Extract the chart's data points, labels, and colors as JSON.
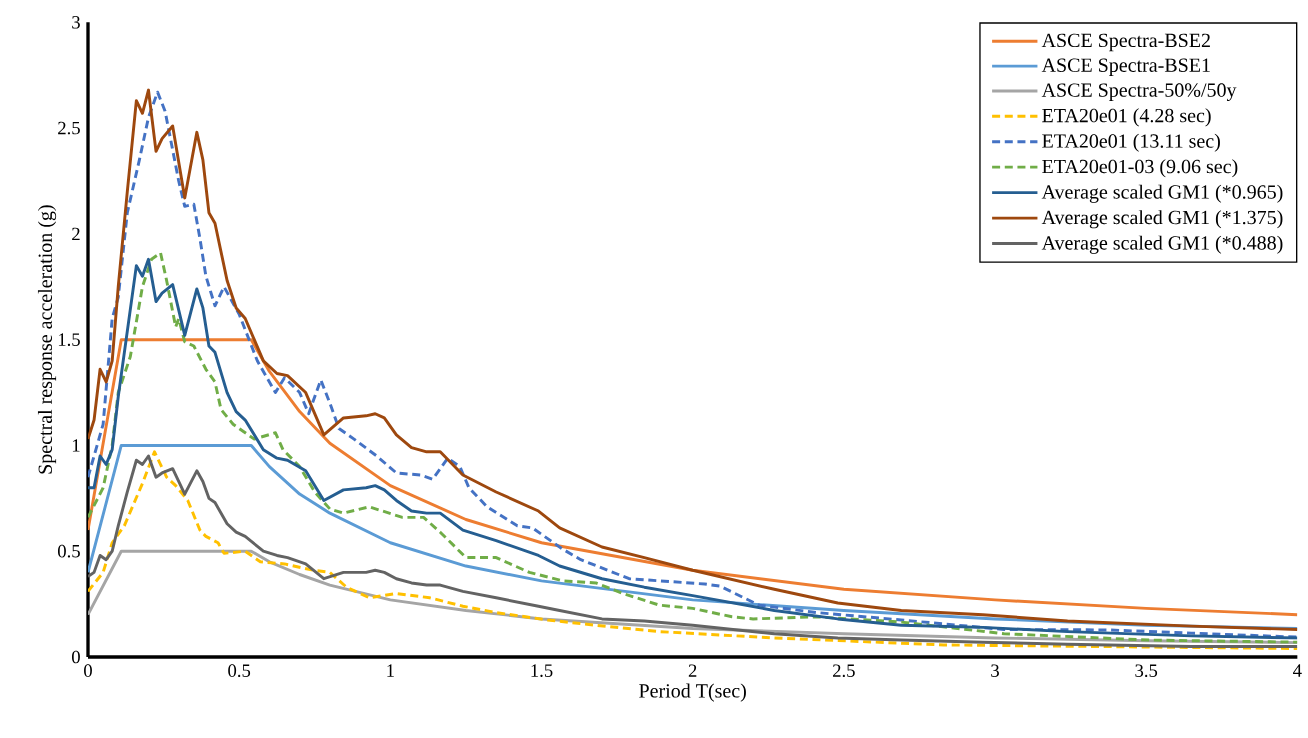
{
  "chart_data": {
    "type": "line",
    "xlabel": "Period T(sec)",
    "ylabel": "Spectral response acceleration (g)",
    "xlim": [
      0,
      4
    ],
    "ylim": [
      0,
      3
    ],
    "xticks": [
      0,
      0.5,
      1,
      1.5,
      2,
      2.5,
      3,
      3.5,
      4
    ],
    "yticks": [
      0,
      0.5,
      1,
      1.5,
      2,
      2.5,
      3
    ],
    "grid": false,
    "legend": "top right",
    "series": [
      {
        "name": "ASCE Spectra-BSE2",
        "color": "#ed7d31",
        "line_style": "solid",
        "x": [
          0,
          0.11,
          0.54,
          0.6,
          0.7,
          0.8,
          1,
          1.25,
          1.5,
          2,
          2.5,
          3,
          3.5,
          4
        ],
        "values": [
          0.6,
          1.5,
          1.5,
          1.35,
          1.16,
          1.01,
          0.81,
          0.65,
          0.54,
          0.41,
          0.32,
          0.27,
          0.23,
          0.2
        ]
      },
      {
        "name": "ASCE Spectra-BSE1",
        "color": "#5b9bd5",
        "line_style": "solid",
        "x": [
          0,
          0.11,
          0.54,
          0.6,
          0.7,
          0.8,
          1,
          1.25,
          1.5,
          2,
          2.5,
          3,
          3.5,
          4
        ],
        "values": [
          0.4,
          1.0,
          1.0,
          0.9,
          0.77,
          0.68,
          0.54,
          0.43,
          0.36,
          0.27,
          0.22,
          0.18,
          0.15,
          0.135
        ]
      },
      {
        "name": "ASCE Spectra-50%/50y",
        "color": "#a5a5a5",
        "line_style": "solid",
        "x": [
          0,
          0.11,
          0.54,
          0.6,
          0.7,
          0.8,
          1,
          1.25,
          1.5,
          2,
          2.5,
          3,
          3.5,
          4
        ],
        "values": [
          0.2,
          0.5,
          0.5,
          0.45,
          0.39,
          0.34,
          0.27,
          0.22,
          0.18,
          0.135,
          0.11,
          0.09,
          0.077,
          0.068
        ]
      },
      {
        "name": "ETA20e01 (4.28 sec)",
        "color": "#ffc000",
        "line_style": "dashed",
        "x": [
          0,
          0.05,
          0.08,
          0.12,
          0.18,
          0.22,
          0.26,
          0.29,
          0.33,
          0.37,
          0.39,
          0.43,
          0.45,
          0.52,
          0.57,
          0.65,
          0.745,
          0.8,
          0.855,
          0.93,
          1.02,
          1.13,
          1.24,
          1.35,
          1.52,
          1.68,
          1.89,
          2.27,
          2.83,
          4
        ],
        "values": [
          0.31,
          0.4,
          0.54,
          0.62,
          0.82,
          0.97,
          0.85,
          0.81,
          0.74,
          0.6,
          0.57,
          0.54,
          0.49,
          0.5,
          0.45,
          0.44,
          0.41,
          0.4,
          0.33,
          0.28,
          0.3,
          0.28,
          0.24,
          0.21,
          0.175,
          0.15,
          0.12,
          0.09,
          0.057,
          0.04
        ]
      },
      {
        "name": "ETA20e01 (13.11 sec)",
        "color": "#4472c4",
        "line_style": "dashed",
        "x": [
          0,
          0.02,
          0.05,
          0.08,
          0.1,
          0.13,
          0.17,
          0.2,
          0.23,
          0.255,
          0.3,
          0.32,
          0.35,
          0.37,
          0.39,
          0.42,
          0.45,
          0.5,
          0.56,
          0.62,
          0.65,
          0.7,
          0.73,
          0.77,
          0.8,
          0.83,
          0.88,
          0.955,
          1.02,
          1.1,
          1.14,
          1.19,
          1.23,
          1.26,
          1.32,
          1.42,
          1.47,
          1.57,
          1.63,
          1.79,
          1.89,
          2.04,
          2.09,
          2.22,
          2.41,
          2.69,
          3.03,
          3.37,
          3.65,
          4
        ],
        "values": [
          0.85,
          0.95,
          1.1,
          1.6,
          1.7,
          2.1,
          2.35,
          2.55,
          2.67,
          2.58,
          2.25,
          2.13,
          2.14,
          1.98,
          1.8,
          1.66,
          1.75,
          1.62,
          1.4,
          1.25,
          1.32,
          1.25,
          1.15,
          1.31,
          1.2,
          1.08,
          1.03,
          0.95,
          0.87,
          0.86,
          0.84,
          0.94,
          0.9,
          0.8,
          0.71,
          0.62,
          0.61,
          0.51,
          0.46,
          0.37,
          0.36,
          0.345,
          0.335,
          0.245,
          0.21,
          0.175,
          0.13,
          0.128,
          0.113,
          0.094
        ]
      },
      {
        "name": "ETA20e01-03 (9.06 sec)",
        "color": "#70ad47",
        "line_style": "dashed",
        "x": [
          0,
          0.05,
          0.08,
          0.1,
          0.14,
          0.18,
          0.21,
          0.24,
          0.26,
          0.29,
          0.3,
          0.32,
          0.35,
          0.39,
          0.42,
          0.44,
          0.48,
          0.55,
          0.62,
          0.645,
          0.7,
          0.75,
          0.8,
          0.845,
          0.93,
          1.04,
          1.11,
          1.165,
          1.25,
          1.35,
          1.46,
          1.57,
          1.68,
          1.77,
          1.89,
          2.0,
          2.13,
          2.2,
          2.41,
          2.69,
          3.03,
          3.51,
          4
        ],
        "values": [
          0.66,
          0.8,
          1.0,
          1.25,
          1.42,
          1.75,
          1.88,
          1.91,
          1.78,
          1.56,
          1.6,
          1.49,
          1.47,
          1.36,
          1.3,
          1.17,
          1.1,
          1.03,
          1.06,
          0.98,
          0.9,
          0.78,
          0.7,
          0.68,
          0.71,
          0.66,
          0.66,
          0.59,
          0.47,
          0.47,
          0.4,
          0.36,
          0.35,
          0.3,
          0.245,
          0.23,
          0.19,
          0.18,
          0.19,
          0.165,
          0.11,
          0.08,
          0.07
        ]
      },
      {
        "name": "Average scaled GM1 (*0.965)",
        "color": "#255e91",
        "line_style": "solid",
        "x": [
          0,
          0.02,
          0.04,
          0.06,
          0.08,
          0.1,
          0.13,
          0.16,
          0.18,
          0.2,
          0.225,
          0.245,
          0.28,
          0.32,
          0.36,
          0.38,
          0.4,
          0.42,
          0.46,
          0.49,
          0.52,
          0.58,
          0.625,
          0.66,
          0.72,
          0.78,
          0.845,
          0.92,
          0.95,
          0.98,
          1.02,
          1.07,
          1.12,
          1.165,
          1.24,
          1.35,
          1.49,
          1.56,
          1.7,
          1.84,
          2.0,
          2.27,
          2.48,
          2.69,
          2.96,
          3.24,
          3.65,
          4
        ],
        "values": [
          0.8,
          0.8,
          0.95,
          0.91,
          0.98,
          1.23,
          1.54,
          1.85,
          1.8,
          1.88,
          1.68,
          1.72,
          1.76,
          1.52,
          1.74,
          1.65,
          1.47,
          1.44,
          1.25,
          1.16,
          1.12,
          0.98,
          0.94,
          0.93,
          0.88,
          0.74,
          0.79,
          0.8,
          0.81,
          0.79,
          0.74,
          0.69,
          0.68,
          0.68,
          0.6,
          0.55,
          0.48,
          0.43,
          0.37,
          0.33,
          0.29,
          0.22,
          0.18,
          0.15,
          0.14,
          0.12,
          0.1,
          0.09
        ]
      },
      {
        "name": "Average scaled GM1 (*1.375)",
        "color": "#9e480e",
        "line_style": "solid",
        "x": [
          0,
          0.02,
          0.04,
          0.06,
          0.08,
          0.1,
          0.13,
          0.16,
          0.18,
          0.2,
          0.225,
          0.245,
          0.28,
          0.32,
          0.36,
          0.38,
          0.4,
          0.42,
          0.46,
          0.49,
          0.52,
          0.58,
          0.625,
          0.66,
          0.72,
          0.78,
          0.845,
          0.92,
          0.95,
          0.98,
          1.02,
          1.07,
          1.12,
          1.165,
          1.24,
          1.35,
          1.49,
          1.56,
          1.7,
          1.84,
          2.0,
          2.27,
          2.48,
          2.69,
          2.96,
          3.24,
          3.65,
          4
        ],
        "values": [
          1.03,
          1.12,
          1.36,
          1.3,
          1.4,
          1.75,
          2.2,
          2.63,
          2.57,
          2.68,
          2.39,
          2.45,
          2.51,
          2.17,
          2.48,
          2.35,
          2.1,
          2.05,
          1.78,
          1.65,
          1.6,
          1.4,
          1.34,
          1.33,
          1.25,
          1.05,
          1.13,
          1.14,
          1.15,
          1.13,
          1.05,
          0.99,
          0.97,
          0.97,
          0.86,
          0.78,
          0.69,
          0.61,
          0.52,
          0.47,
          0.41,
          0.32,
          0.255,
          0.22,
          0.2,
          0.17,
          0.146,
          0.13
        ]
      },
      {
        "name": "Average scaled GM1 (*0.488)",
        "color": "#636363",
        "line_style": "solid",
        "x": [
          0,
          0.02,
          0.04,
          0.06,
          0.08,
          0.1,
          0.13,
          0.16,
          0.18,
          0.2,
          0.225,
          0.245,
          0.28,
          0.32,
          0.36,
          0.38,
          0.4,
          0.42,
          0.46,
          0.49,
          0.52,
          0.58,
          0.625,
          0.66,
          0.72,
          0.78,
          0.845,
          0.92,
          0.95,
          0.98,
          1.02,
          1.07,
          1.12,
          1.165,
          1.24,
          1.35,
          1.49,
          1.56,
          1.7,
          1.84,
          2.0,
          2.27,
          2.48,
          2.69,
          2.96,
          3.24,
          3.65,
          4
        ],
        "values": [
          0.38,
          0.4,
          0.48,
          0.46,
          0.5,
          0.62,
          0.78,
          0.93,
          0.91,
          0.95,
          0.85,
          0.87,
          0.89,
          0.77,
          0.88,
          0.83,
          0.75,
          0.73,
          0.63,
          0.59,
          0.57,
          0.5,
          0.48,
          0.47,
          0.44,
          0.37,
          0.4,
          0.4,
          0.41,
          0.4,
          0.37,
          0.35,
          0.34,
          0.34,
          0.31,
          0.28,
          0.24,
          0.22,
          0.18,
          0.17,
          0.15,
          0.11,
          0.09,
          0.08,
          0.07,
          0.06,
          0.05,
          0.05
        ]
      }
    ]
  }
}
